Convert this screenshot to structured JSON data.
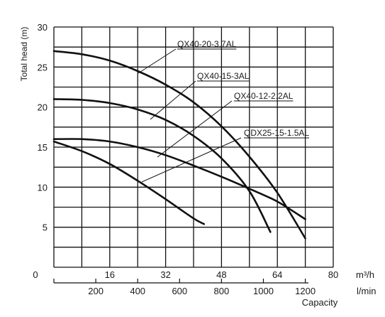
{
  "chart_data": {
    "type": "line",
    "ylabel": "Total head  (m)",
    "ylim": [
      0,
      30
    ],
    "yticks": [
      5,
      10,
      15,
      20,
      25,
      30
    ],
    "xlim": [
      0,
      80
    ],
    "xticks_m3h": [
      "16",
      "32",
      "48",
      "64",
      "80"
    ],
    "x_unit_m3h": "m³/h",
    "xticks_lmin": [
      "200",
      "400",
      "600",
      "800",
      "1000",
      "1200"
    ],
    "xticks_lmin_values": [
      200,
      400,
      600,
      800,
      1000,
      1200
    ],
    "x_unit_lmin": "l/min",
    "xlabel": "Capacity",
    "origin_label": "0",
    "grid": true,
    "series": [
      {
        "name": "QX40-20-3.7AL",
        "x": [
          0,
          8,
          16,
          24,
          32,
          40,
          48,
          56,
          64,
          72
        ],
        "y": [
          27.0,
          26.6,
          25.8,
          24.5,
          22.8,
          20.6,
          17.6,
          13.8,
          9.3,
          3.6
        ]
      },
      {
        "name": "QX40-15-3AL",
        "x": [
          0,
          8,
          16,
          24,
          32,
          40,
          48,
          56,
          62
        ],
        "y": [
          21.0,
          20.9,
          20.5,
          19.7,
          18.4,
          16.4,
          13.6,
          9.5,
          4.4
        ]
      },
      {
        "name": "QX40-12-2.2AL",
        "x": [
          0,
          8,
          16,
          24,
          32,
          40,
          48,
          56,
          64,
          72
        ],
        "y": [
          16.0,
          16.0,
          15.7,
          15.0,
          14.0,
          12.7,
          11.3,
          9.8,
          8.2,
          6.0
        ]
      },
      {
        "name": "QDX25-15-1.5AL",
        "x": [
          0,
          8,
          16,
          24,
          32,
          40,
          43
        ],
        "y": [
          15.7,
          14.5,
          12.9,
          10.8,
          8.5,
          6.1,
          5.4
        ]
      }
    ]
  }
}
